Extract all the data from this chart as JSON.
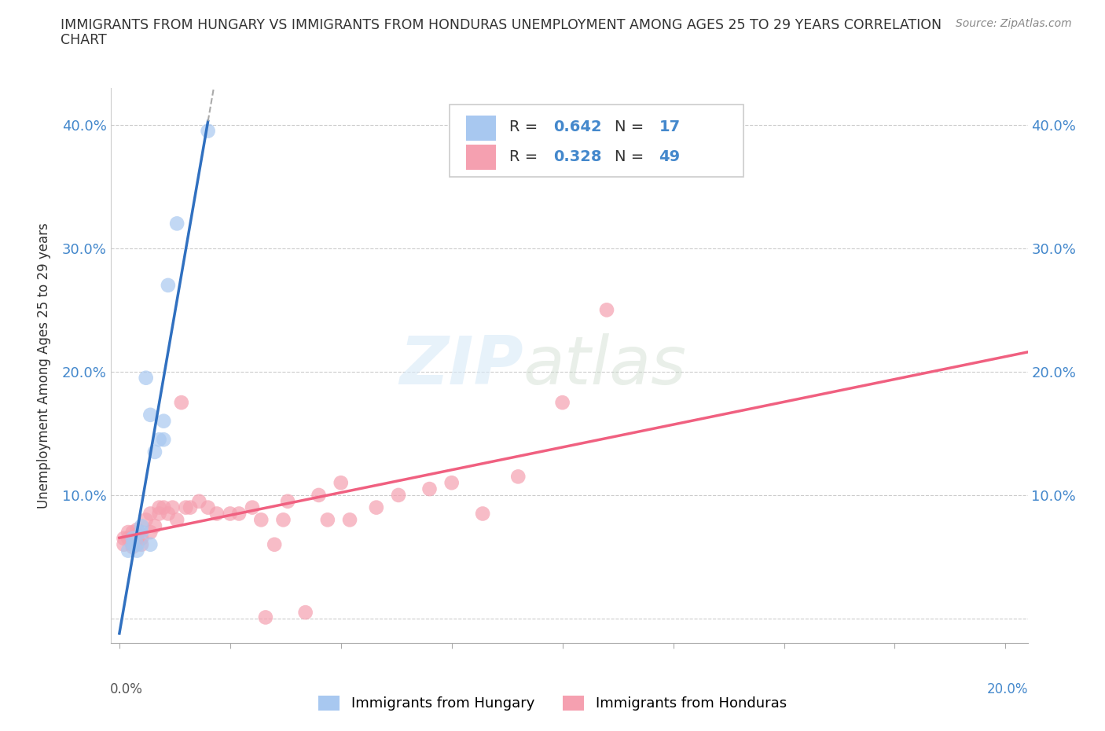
{
  "title_line1": "IMMIGRANTS FROM HUNGARY VS IMMIGRANTS FROM HONDURAS UNEMPLOYMENT AMONG AGES 25 TO 29 YEARS CORRELATION",
  "title_line2": "CHART",
  "source_text": "Source: ZipAtlas.com",
  "ylabel": "Unemployment Among Ages 25 to 29 years",
  "xlim": [
    -0.002,
    0.205
  ],
  "ylim": [
    -0.02,
    0.43
  ],
  "yticks": [
    0.0,
    0.1,
    0.2,
    0.3,
    0.4
  ],
  "xticks": [
    0.0,
    0.025,
    0.05,
    0.075,
    0.1,
    0.125,
    0.15,
    0.175,
    0.2
  ],
  "ytick_labels": [
    "",
    "10.0%",
    "20.0%",
    "30.0%",
    "40.0%"
  ],
  "xtick_labels": [
    "",
    "",
    "",
    "",
    "",
    "",
    "",
    "",
    ""
  ],
  "background_color": "#ffffff",
  "watermark_text": "ZIP",
  "watermark_text2": "atlas",
  "hungary_color": "#a8c8f0",
  "honduras_color": "#f5a0b0",
  "hungary_line_color": "#3070c0",
  "honduras_line_color": "#f06080",
  "legend_R_color": "#4488cc",
  "R_hungary": 0.642,
  "N_hungary": 17,
  "R_honduras": 0.328,
  "N_honduras": 49,
  "hungary_x": [
    0.002,
    0.003,
    0.003,
    0.004,
    0.004,
    0.005,
    0.005,
    0.006,
    0.007,
    0.007,
    0.008,
    0.009,
    0.01,
    0.01,
    0.011,
    0.013,
    0.02
  ],
  "hungary_y": [
    0.055,
    0.06,
    0.065,
    0.055,
    0.06,
    0.07,
    0.075,
    0.195,
    0.165,
    0.06,
    0.135,
    0.145,
    0.145,
    0.16,
    0.27,
    0.32,
    0.395
  ],
  "honduras_x": [
    0.001,
    0.001,
    0.002,
    0.002,
    0.003,
    0.003,
    0.003,
    0.004,
    0.004,
    0.004,
    0.005,
    0.005,
    0.006,
    0.007,
    0.007,
    0.008,
    0.009,
    0.009,
    0.01,
    0.011,
    0.012,
    0.013,
    0.014,
    0.015,
    0.016,
    0.018,
    0.02,
    0.022,
    0.025,
    0.027,
    0.03,
    0.032,
    0.033,
    0.035,
    0.037,
    0.038,
    0.042,
    0.045,
    0.047,
    0.05,
    0.052,
    0.058,
    0.063,
    0.07,
    0.075,
    0.082,
    0.09,
    0.1,
    0.11
  ],
  "honduras_y": [
    0.065,
    0.06,
    0.07,
    0.065,
    0.06,
    0.058,
    0.07,
    0.065,
    0.068,
    0.072,
    0.06,
    0.065,
    0.08,
    0.085,
    0.07,
    0.075,
    0.09,
    0.085,
    0.09,
    0.085,
    0.09,
    0.08,
    0.175,
    0.09,
    0.09,
    0.095,
    0.09,
    0.085,
    0.085,
    0.085,
    0.09,
    0.08,
    0.001,
    0.06,
    0.08,
    0.095,
    0.005,
    0.1,
    0.08,
    0.11,
    0.08,
    0.09,
    0.1,
    0.105,
    0.11,
    0.085,
    0.115,
    0.175,
    0.25
  ],
  "label_hungary": "Immigrants from Hungary",
  "label_honduras": "Immigrants from Honduras"
}
